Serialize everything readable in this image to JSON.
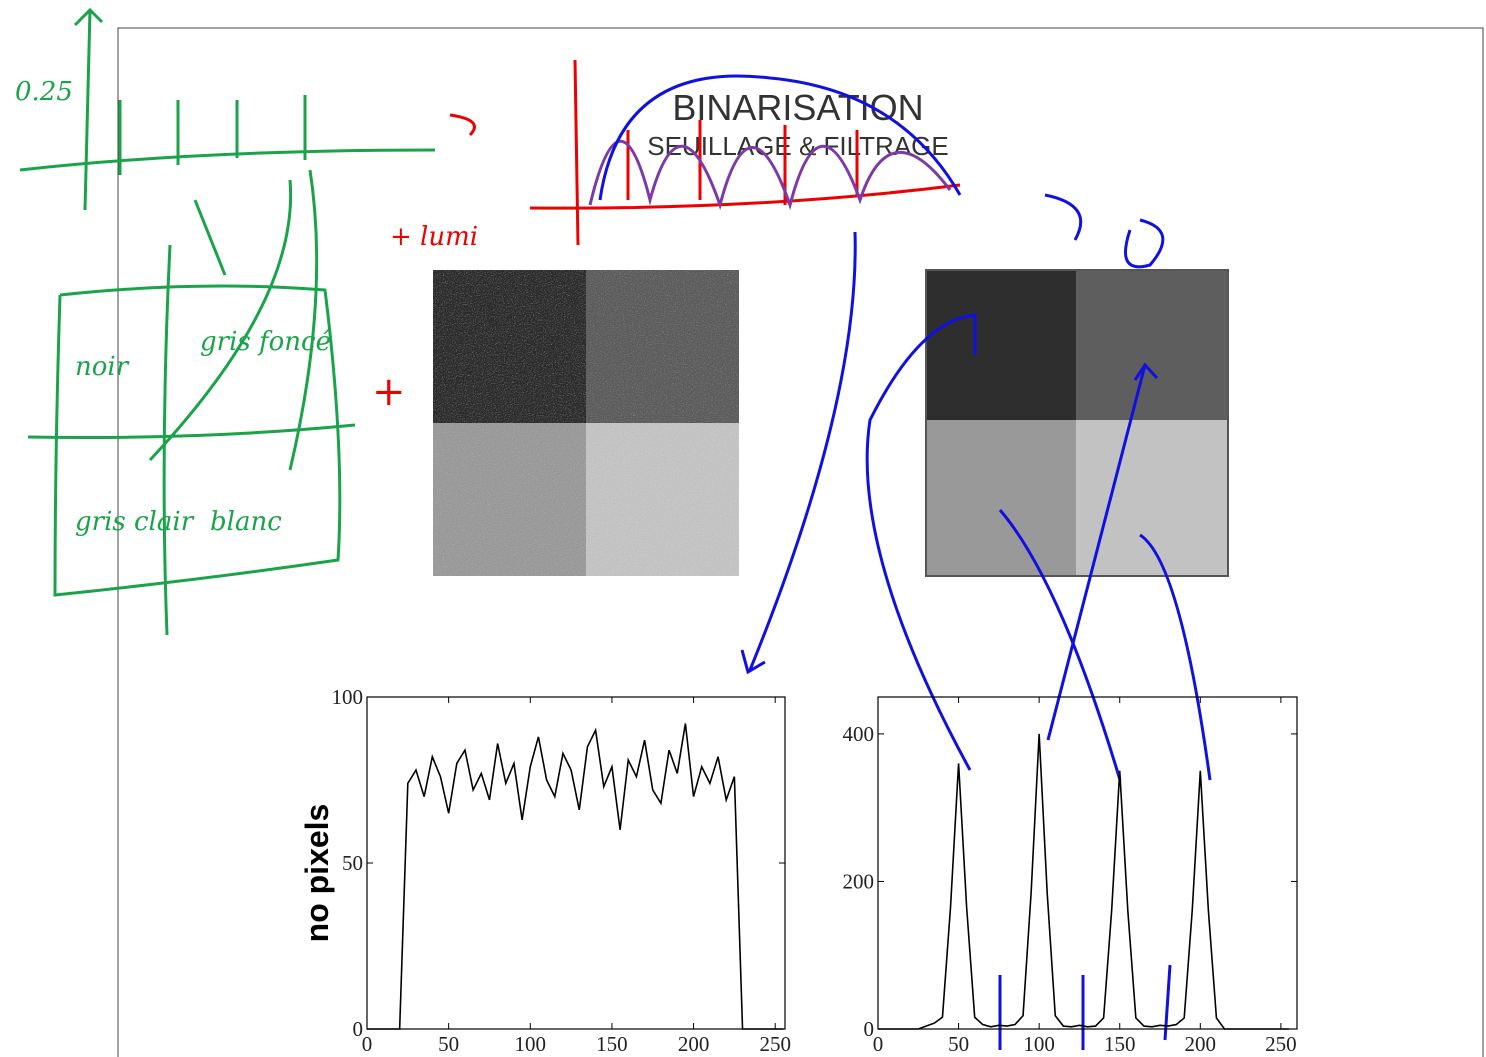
{
  "slide": {
    "title": "BINARISATION",
    "subtitle": "SEUILLAGE & FILTRAGE"
  },
  "annotations": [
    "0.25",
    "noir",
    "gris foncé",
    "gris clair",
    "blanc",
    "+ lumi",
    "+"
  ],
  "chart_data": [
    {
      "type": "line",
      "ylabel": "no pixels",
      "color": "#000000",
      "x": [
        0,
        5,
        10,
        15,
        20,
        25,
        30,
        35,
        40,
        45,
        50,
        55,
        60,
        65,
        70,
        75,
        80,
        85,
        90,
        95,
        100,
        105,
        110,
        115,
        120,
        125,
        130,
        135,
        140,
        145,
        150,
        155,
        160,
        165,
        170,
        175,
        180,
        185,
        190,
        195,
        200,
        205,
        210,
        215,
        220,
        225,
        230,
        235,
        240,
        245,
        250,
        255
      ],
      "values": [
        0,
        0,
        0,
        0,
        0,
        74,
        78,
        70,
        82,
        76,
        65,
        80,
        84,
        72,
        77,
        69,
        86,
        74,
        80,
        63,
        79,
        88,
        75,
        70,
        83,
        78,
        66,
        85,
        90,
        73,
        79,
        60,
        81,
        76,
        87,
        72,
        68,
        84,
        77,
        92,
        70,
        79,
        74,
        82,
        69,
        76,
        0,
        0,
        0,
        0,
        0,
        0
      ],
      "xlim": [
        0,
        256
      ],
      "ylim": [
        0,
        100
      ],
      "xticks": [
        0,
        50,
        100,
        150,
        200,
        250
      ],
      "yticks": [
        0,
        50,
        100
      ]
    },
    {
      "type": "line",
      "color": "#000000",
      "x": [
        0,
        5,
        10,
        15,
        20,
        25,
        30,
        35,
        40,
        45,
        50,
        55,
        60,
        65,
        70,
        75,
        80,
        85,
        90,
        95,
        100,
        105,
        110,
        115,
        120,
        125,
        130,
        135,
        140,
        145,
        150,
        155,
        160,
        165,
        170,
        175,
        180,
        185,
        190,
        195,
        200,
        205,
        210,
        215,
        220,
        225,
        230,
        235,
        240,
        245,
        250,
        255
      ],
      "values": [
        0,
        0,
        0,
        0,
        0,
        0,
        4,
        8,
        16,
        165,
        360,
        165,
        16,
        6,
        3,
        5,
        4,
        6,
        18,
        184,
        400,
        184,
        18,
        4,
        3,
        5,
        3,
        4,
        15,
        161,
        350,
        161,
        15,
        4,
        3,
        5,
        4,
        6,
        15,
        161,
        350,
        161,
        15,
        0,
        0,
        0,
        0,
        0,
        0,
        0,
        0,
        0
      ],
      "xlim": [
        0,
        260
      ],
      "ylim": [
        0,
        450
      ],
      "xticks": [
        0,
        50,
        100,
        150,
        200,
        250
      ],
      "yticks": [
        0,
        200,
        400
      ]
    }
  ]
}
